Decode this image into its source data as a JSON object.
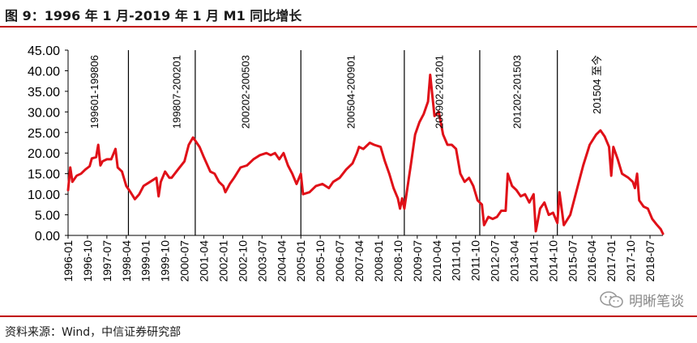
{
  "header": {
    "title": "图 9：1996 年 1 月-2019 年 1 月 M1 同比增长"
  },
  "footer": {
    "source": "资料来源：Wind，中信证券研究部",
    "watermark": "明晰笔谈"
  },
  "colors": {
    "accent": "#c00000",
    "series": "#e01018",
    "axis": "#000000"
  },
  "chart_data": {
    "type": "line",
    "title": "1996 年 1 月-2019 年 1 月 M1 同比增长",
    "xlabel": "",
    "ylabel": "",
    "ylim": [
      0,
      45
    ],
    "yticks": [
      "0.00",
      "5.00",
      "10.00",
      "15.00",
      "20.00",
      "25.00",
      "30.00",
      "35.00",
      "40.00",
      "45.00"
    ],
    "x_start": "1996-01",
    "x_end": "2019-01",
    "xticks": [
      "1996-01",
      "1996-10",
      "1997-07",
      "1998-04",
      "1999-01",
      "1999-10",
      "2000-07",
      "2001-04",
      "2002-01",
      "2002-10",
      "2003-07",
      "2004-04",
      "2005-01",
      "2005-10",
      "2006-07",
      "2007-04",
      "2008-01",
      "2008-10",
      "2009-07",
      "2010-04",
      "2011-01",
      "2011-10",
      "2012-07",
      "2013-04",
      "2014-01",
      "2014-10",
      "2015-07",
      "2016-04",
      "2017-01",
      "2017-10",
      "2018-07"
    ],
    "dividers": [
      "1998-05",
      "2000-12",
      "2005-01",
      "2009-01",
      "2011-12",
      "2014-12"
    ],
    "period_labels": [
      {
        "text": "199601-199806",
        "at": "1997-03"
      },
      {
        "text": "199807-200201",
        "at": "2000-05"
      },
      {
        "text": "200202-200503",
        "at": "2003-01"
      },
      {
        "text": "200504-200901",
        "at": "2007-02"
      },
      {
        "text": "200902-201201",
        "at": "2010-07"
      },
      {
        "text": "201202-201503",
        "at": "2013-07"
      },
      {
        "text": "201504 至今",
        "at": "2016-08"
      }
    ],
    "series": [
      {
        "name": "M1 同比增长",
        "points": [
          [
            "1996-01",
            11.0
          ],
          [
            "1996-02",
            16.5
          ],
          [
            "1996-03",
            13.0
          ],
          [
            "1996-05",
            14.5
          ],
          [
            "1996-07",
            15.0
          ],
          [
            "1996-09",
            16.0
          ],
          [
            "1996-11",
            16.8
          ],
          [
            "1996-12",
            18.7
          ],
          [
            "1997-02",
            19.0
          ],
          [
            "1997-03",
            22.0
          ],
          [
            "1997-04",
            17.0
          ],
          [
            "1997-05",
            18.0
          ],
          [
            "1997-07",
            18.5
          ],
          [
            "1997-09",
            18.5
          ],
          [
            "1997-11",
            21.0
          ],
          [
            "1997-12",
            16.5
          ],
          [
            "1998-02",
            15.5
          ],
          [
            "1998-04",
            12.0
          ],
          [
            "1998-06",
            10.5
          ],
          [
            "1998-08",
            8.8
          ],
          [
            "1998-10",
            10.0
          ],
          [
            "1998-12",
            12.0
          ],
          [
            "1999-03",
            13.0
          ],
          [
            "1999-06",
            14.0
          ],
          [
            "1999-07",
            9.5
          ],
          [
            "1999-08",
            13.0
          ],
          [
            "1999-10",
            15.5
          ],
          [
            "1999-12",
            14.0
          ],
          [
            "2000-01",
            14.0
          ],
          [
            "2000-04",
            16.0
          ],
          [
            "2000-07",
            18.0
          ],
          [
            "2000-09",
            22.0
          ],
          [
            "2000-11",
            23.8
          ],
          [
            "2001-02",
            21.5
          ],
          [
            "2001-04",
            19.0
          ],
          [
            "2001-07",
            15.5
          ],
          [
            "2001-09",
            15.0
          ],
          [
            "2001-11",
            13.0
          ],
          [
            "2002-01",
            12.0
          ],
          [
            "2002-02",
            10.5
          ],
          [
            "2002-04",
            12.5
          ],
          [
            "2002-06",
            14.0
          ],
          [
            "2002-09",
            16.5
          ],
          [
            "2002-12",
            17.0
          ],
          [
            "2003-03",
            18.5
          ],
          [
            "2003-06",
            19.5
          ],
          [
            "2003-09",
            20.0
          ],
          [
            "2003-11",
            19.5
          ],
          [
            "2004-01",
            20.0
          ],
          [
            "2004-03",
            18.5
          ],
          [
            "2004-05",
            20.0
          ],
          [
            "2004-07",
            17.0
          ],
          [
            "2004-09",
            15.0
          ],
          [
            "2004-11",
            12.5
          ],
          [
            "2005-01",
            15.0
          ],
          [
            "2005-02",
            10.0
          ],
          [
            "2005-05",
            10.5
          ],
          [
            "2005-08",
            12.0
          ],
          [
            "2005-11",
            12.5
          ],
          [
            "2006-02",
            11.5
          ],
          [
            "2006-04",
            13.0
          ],
          [
            "2006-07",
            14.0
          ],
          [
            "2006-10",
            16.0
          ],
          [
            "2007-01",
            17.5
          ],
          [
            "2007-03",
            20.0
          ],
          [
            "2007-04",
            21.5
          ],
          [
            "2007-06",
            21.0
          ],
          [
            "2007-09",
            22.5
          ],
          [
            "2007-11",
            22.0
          ],
          [
            "2008-02",
            21.5
          ],
          [
            "2008-04",
            18.0
          ],
          [
            "2008-06",
            15.0
          ],
          [
            "2008-08",
            11.5
          ],
          [
            "2008-10",
            9.0
          ],
          [
            "2008-11",
            6.5
          ],
          [
            "2008-12",
            9.0
          ],
          [
            "2009-01",
            6.5
          ],
          [
            "2009-02",
            10.0
          ],
          [
            "2009-04",
            17.0
          ],
          [
            "2009-06",
            24.5
          ],
          [
            "2009-08",
            27.5
          ],
          [
            "2009-10",
            29.5
          ],
          [
            "2009-12",
            32.5
          ],
          [
            "2010-01",
            39.0
          ],
          [
            "2010-03",
            29.0
          ],
          [
            "2010-05",
            30.0
          ],
          [
            "2010-07",
            24.5
          ],
          [
            "2010-09",
            22.0
          ],
          [
            "2010-11",
            22.0
          ],
          [
            "2011-01",
            21.0
          ],
          [
            "2011-03",
            15.0
          ],
          [
            "2011-05",
            13.0
          ],
          [
            "2011-07",
            14.0
          ],
          [
            "2011-09",
            12.0
          ],
          [
            "2011-11",
            8.5
          ],
          [
            "2012-01",
            7.5
          ],
          [
            "2012-02",
            2.5
          ],
          [
            "2012-04",
            4.5
          ],
          [
            "2012-06",
            4.0
          ],
          [
            "2012-08",
            4.5
          ],
          [
            "2012-10",
            6.0
          ],
          [
            "2012-12",
            6.0
          ],
          [
            "2013-01",
            15.0
          ],
          [
            "2013-03",
            12.0
          ],
          [
            "2013-05",
            11.0
          ],
          [
            "2013-07",
            9.5
          ],
          [
            "2013-09",
            10.0
          ],
          [
            "2013-11",
            8.0
          ],
          [
            "2014-01",
            10.0
          ],
          [
            "2014-02",
            1.0
          ],
          [
            "2014-04",
            6.5
          ],
          [
            "2014-06",
            8.0
          ],
          [
            "2014-08",
            5.0
          ],
          [
            "2014-10",
            5.5
          ],
          [
            "2014-12",
            3.0
          ],
          [
            "2015-01",
            10.5
          ],
          [
            "2015-03",
            2.5
          ],
          [
            "2015-06",
            5.0
          ],
          [
            "2015-09",
            11.0
          ],
          [
            "2015-12",
            17.0
          ],
          [
            "2016-03",
            22.0
          ],
          [
            "2016-06",
            24.5
          ],
          [
            "2016-08",
            25.5
          ],
          [
            "2016-10",
            24.0
          ],
          [
            "2016-12",
            21.5
          ],
          [
            "2017-01",
            14.5
          ],
          [
            "2017-02",
            21.5
          ],
          [
            "2017-04",
            18.5
          ],
          [
            "2017-06",
            15.0
          ],
          [
            "2017-09",
            14.0
          ],
          [
            "2017-11",
            13.0
          ],
          [
            "2017-12",
            11.5
          ],
          [
            "2018-01",
            15.0
          ],
          [
            "2018-02",
            8.5
          ],
          [
            "2018-04",
            7.0
          ],
          [
            "2018-06",
            6.5
          ],
          [
            "2018-08",
            4.0
          ],
          [
            "2018-10",
            2.7
          ],
          [
            "2018-12",
            1.5
          ],
          [
            "2019-01",
            0.4
          ]
        ]
      }
    ]
  }
}
